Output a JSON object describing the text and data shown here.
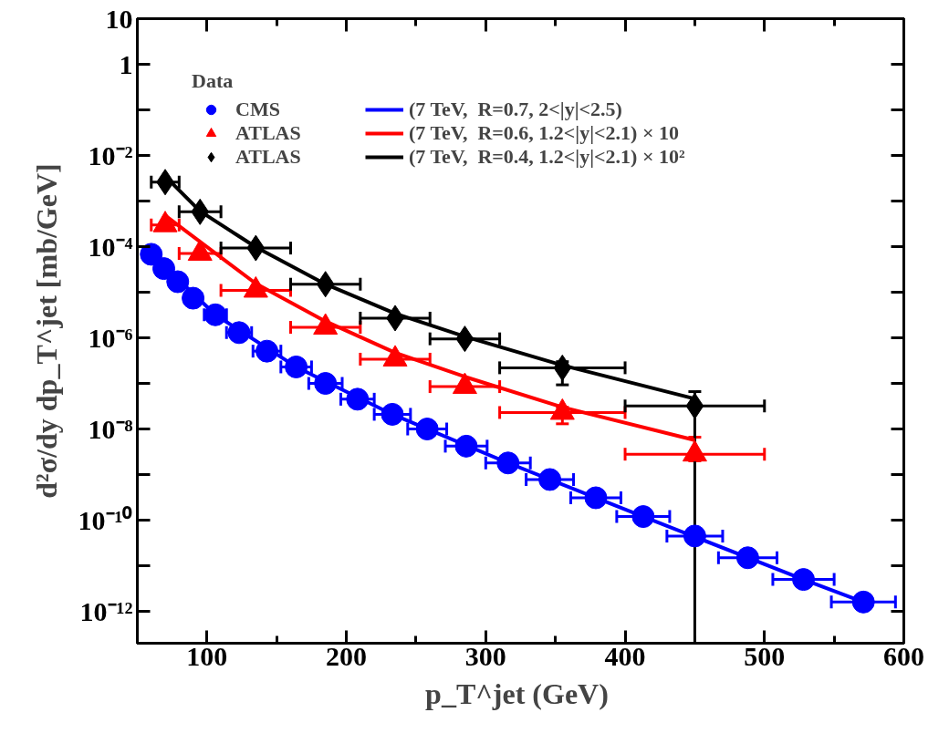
{
  "chart_data": {
    "type": "scatter",
    "xlabel": "p_T^jet  (GeV)",
    "ylabel": "d²σ/dy dp_T^jet [mb/GeV]",
    "legend_title": "Data",
    "legend": "top",
    "log": true,
    "grid": false,
    "xlim": [
      50,
      600
    ],
    "xticks": [
      100,
      200,
      300,
      400,
      500,
      600
    ],
    "ylim": [
      2e-13,
      10
    ],
    "yticks": [
      10,
      1,
      {
        "value": 0.1,
        "label": null
      },
      {
        "value": 0.01,
        "label": "10⁻²"
      },
      {
        "value": 0.001,
        "label": null
      },
      {
        "value": 0.0001,
        "label": "10⁻⁴"
      },
      {
        "value": 1e-05,
        "label": null
      },
      {
        "value": 1e-06,
        "label": "10⁻⁶"
      },
      {
        "value": 1e-07,
        "label": null
      },
      {
        "value": 1e-08,
        "label": "10⁻⁸"
      },
      {
        "value": 1e-09,
        "label": null
      },
      {
        "value": 1e-10,
        "label": "10⁻¹⁰"
      },
      {
        "value": 1e-11,
        "label": null
      },
      {
        "value": 1e-12,
        "label": "10⁻¹²"
      }
    ],
    "series": [
      {
        "name": "CMS",
        "marker": "circle",
        "color": "#0000ff",
        "x": [
          60,
          69,
          79,
          90,
          106,
          123,
          143,
          164,
          185,
          208,
          233,
          258,
          286,
          316,
          346,
          379,
          413,
          450,
          488,
          528,
          571
        ],
        "values": [
          6.8e-05,
          3.3e-05,
          1.7e-05,
          7.4e-06,
          3.2e-06,
          1.3e-06,
          5.1e-07,
          2.3e-07,
          1e-07,
          4.5e-08,
          2.1e-08,
          1e-08,
          4.2e-09,
          1.8e-09,
          7.8e-10,
          3.1e-10,
          1.2e-10,
          4.5e-11,
          1.5e-11,
          5e-12,
          1.6e-12
        ],
        "xerrors": [
          3,
          4,
          5,
          6,
          8,
          9,
          10,
          11,
          12,
          12,
          13,
          14,
          15,
          16,
          17,
          18,
          19,
          20,
          21,
          22,
          23
        ]
      },
      {
        "name": "ATLAS",
        "marker": "triangle",
        "color": "#ff0000",
        "x": [
          70,
          95,
          135,
          185,
          235,
          285,
          355,
          450
        ],
        "values": [
          0.0003,
          7.1e-05,
          1.1e-05,
          1.7e-06,
          3.4e-07,
          8.5e-08,
          2.3e-08,
          2.8e-09
        ],
        "xerrors": [
          [
            60,
            80
          ],
          [
            80,
            110
          ],
          [
            110,
            160
          ],
          [
            160,
            210
          ],
          [
            210,
            260
          ],
          [
            260,
            310
          ],
          [
            310,
            400
          ],
          [
            400,
            500
          ]
        ],
        "errors": [
          null,
          null,
          null,
          null,
          null,
          null,
          [
            1.3e-08,
            3e-08
          ],
          [
            2e-09,
            6.6e-09
          ]
        ]
      },
      {
        "name": "ATLAS",
        "marker": "diamond",
        "color": "#000000",
        "x": [
          70,
          95,
          135,
          185,
          235,
          285,
          355,
          450
        ],
        "values": [
          0.0026,
          0.00058,
          9.3e-05,
          1.5e-05,
          2.7e-06,
          9.5e-07,
          2.2e-07,
          3.2e-08
        ],
        "xerrors": [
          [
            60,
            80
          ],
          [
            80,
            110
          ],
          [
            110,
            160
          ],
          [
            160,
            210
          ],
          [
            210,
            260
          ],
          [
            260,
            310
          ],
          [
            310,
            400
          ],
          [
            400,
            500
          ]
        ],
        "errors": [
          null,
          null,
          null,
          null,
          null,
          null,
          [
            9.3e-08,
            3e-07
          ],
          [
            2e-13,
            6.6e-08
          ]
        ]
      },
      {
        "name": "(7 TeV,  R=0.7, 2<|y|<2.5)",
        "type": "line",
        "marker": "none",
        "color": "#0000ff",
        "x": [
          60,
          106,
          164,
          233,
          316,
          413,
          528,
          571
        ],
        "values": [
          7e-05,
          3.2e-06,
          2.3e-07,
          2.1e-08,
          1.8e-09,
          1.2e-10,
          5e-12,
          1.6e-12
        ]
      },
      {
        "name": "(7 TeV,  R=0.6, 1.2<|y|<2.1) × 10",
        "type": "line",
        "marker": "none",
        "color": "#ff0000",
        "x": [
          70,
          135,
          185,
          235,
          285,
          355,
          450
        ],
        "values": [
          0.00048,
          1.55e-05,
          2.3e-06,
          4.7e-07,
          1.4e-07,
          3e-08,
          5.7e-09
        ]
      },
      {
        "name": "(7 TeV,  R=0.4, 1.2<|y|<2.1) × 10²",
        "type": "line",
        "marker": "none",
        "color": "#000000",
        "x": [
          70,
          95,
          135,
          185,
          235,
          285,
          355,
          450
        ],
        "values": [
          0.0035,
          0.0006,
          9.8e-05,
          1.5e-05,
          3.4e-06,
          1.07e-06,
          2.5e-07,
          4.6e-08
        ]
      }
    ]
  }
}
